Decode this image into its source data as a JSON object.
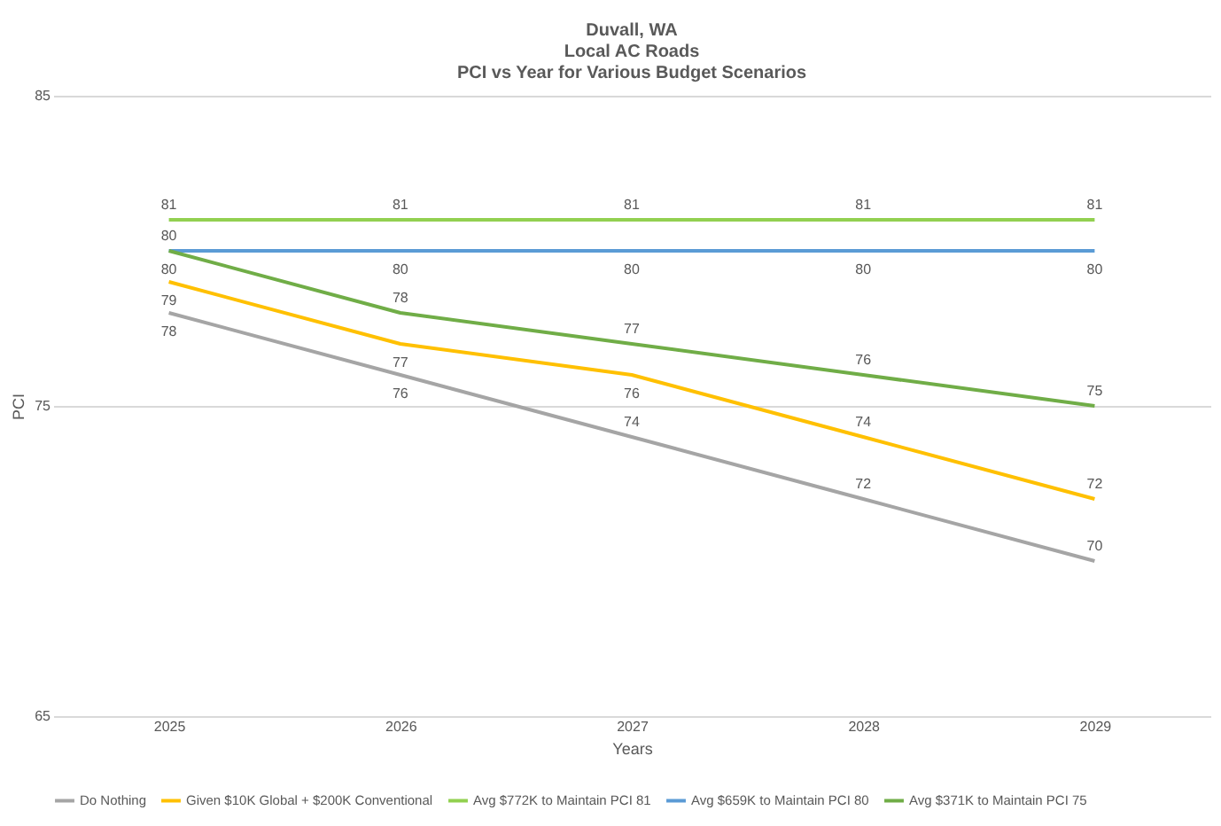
{
  "chart_data": {
    "type": "line",
    "title": "Duvall, WA\nLocal AC Roads\nPCI vs Year for Various Budget Scenarios",
    "xlabel": "Years",
    "ylabel": "PCI",
    "categories": [
      "2025",
      "2026",
      "2027",
      "2028",
      "2029"
    ],
    "series": [
      {
        "name": "Do Nothing",
        "color": "#a5a5a5",
        "values": [
          78,
          76,
          74,
          72,
          70
        ]
      },
      {
        "name": "Given $10K Global + $200K Conventional",
        "color": "#ffc000",
        "values": [
          79,
          77,
          76,
          74,
          72
        ]
      },
      {
        "name": "Avg $772K to Maintain PCI 81",
        "color": "#92d050",
        "values": [
          81,
          81,
          81,
          81,
          81
        ]
      },
      {
        "name": "Avg $659K to Maintain PCI 80",
        "color": "#5b9bd5",
        "values": [
          80,
          80,
          80,
          80,
          80
        ]
      },
      {
        "name": "Avg $371K to Maintain PCI 75",
        "color": "#70ad47",
        "values": [
          80,
          78,
          77,
          76,
          75
        ]
      }
    ],
    "ylim": [
      65,
      85
    ],
    "yticks": [
      65,
      75,
      85
    ],
    "grid": "y",
    "legend": "bottom",
    "data_labels": true,
    "marker": "none",
    "line_style": "solid"
  }
}
